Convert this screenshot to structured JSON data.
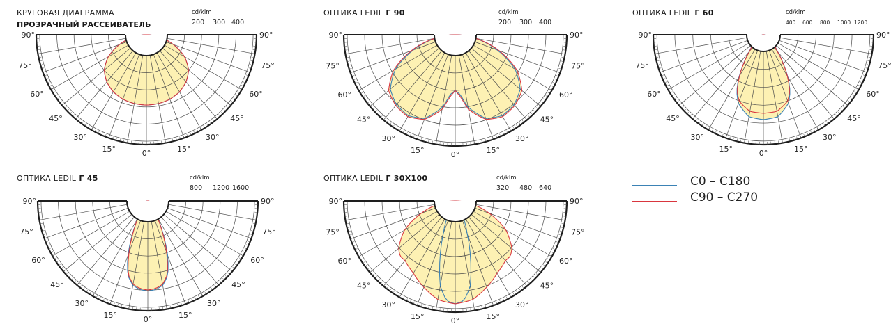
{
  "colors": {
    "fill": "#fdf1b3",
    "grid": "#4a4a4a",
    "frame": "#1e1e1e",
    "c0": "#3b82b5",
    "c90": "#d9363e"
  },
  "legend": [
    {
      "label": "C0 – C180",
      "color": "#3b82b5"
    },
    {
      "label": "C90 – C270",
      "color": "#d9363e"
    }
  ],
  "chart_data": [
    {
      "type": "polar",
      "title_line1": "КРУГОВАЯ ДИАГРАММА",
      "title_line2": "ПРОЗРАЧНЫЙ РАССЕИВАТЕЛЬ",
      "unit": "cd/klm",
      "ticks": [
        "200",
        "300",
        "400"
      ],
      "max_value": 500,
      "angle_labels": [
        "90°",
        "75°",
        "60°",
        "45°",
        "30°",
        "15°",
        "0°",
        "15°",
        "30°",
        "45°",
        "60°",
        "75°",
        "90°"
      ],
      "curves": {
        "c0_angles": [
          0,
          10,
          20,
          30,
          40,
          50,
          60,
          70,
          80,
          90
        ],
        "c0_values": [
          320,
          318,
          312,
          300,
          280,
          250,
          200,
          130,
          60,
          0
        ],
        "c90_angles": [
          0,
          10,
          20,
          30,
          40,
          50,
          60,
          70,
          80,
          90
        ],
        "c90_values": [
          320,
          318,
          312,
          300,
          280,
          250,
          200,
          130,
          60,
          0
        ]
      }
    },
    {
      "type": "polar",
      "title_line1": "ОПТИКА LEDIL",
      "title_bold": "Г 90",
      "unit": "cd/klm",
      "ticks": [
        "200",
        "300",
        "400"
      ],
      "max_value": 500,
      "angle_labels": [
        "90°",
        "75°",
        "60°",
        "45°",
        "30°",
        "15°",
        "0°",
        "15°",
        "30°",
        "45°",
        "60°",
        "75°",
        "90°"
      ],
      "curves": {
        "c0_angles": [
          0,
          5,
          10,
          20,
          30,
          40,
          50,
          60,
          70,
          80,
          90
        ],
        "c0_values": [
          250,
          270,
          330,
          400,
          420,
          410,
          380,
          310,
          200,
          90,
          0
        ],
        "c90_angles": [
          0,
          5,
          10,
          20,
          30,
          40,
          50,
          60,
          70,
          80,
          90
        ],
        "c90_values": [
          250,
          280,
          340,
          405,
          425,
          415,
          390,
          320,
          210,
          95,
          0
        ]
      }
    },
    {
      "type": "polar",
      "title_line1": "ОПТИКА LEDIL",
      "title_bold": "Г 60",
      "unit": "cd/klm",
      "ticks": [
        "400",
        "600",
        "800",
        "1000",
        "1200"
      ],
      "max_value": 1400,
      "angle_labels": [
        "90°",
        "75°",
        "60°",
        "45°",
        "30°",
        "15°",
        "0°",
        "15°",
        "30°",
        "45°",
        "60°",
        "75°",
        "90°"
      ],
      "curves": {
        "c0_angles": [
          0,
          10,
          20,
          25,
          30,
          35,
          40,
          50,
          60,
          90
        ],
        "c0_values": [
          1080,
          1060,
          930,
          800,
          620,
          430,
          280,
          130,
          50,
          0
        ],
        "c90_angles": [
          0,
          10,
          20,
          25,
          30,
          35,
          40,
          50,
          60,
          90
        ],
        "c90_values": [
          1000,
          990,
          900,
          790,
          610,
          420,
          270,
          120,
          45,
          0
        ]
      }
    },
    {
      "type": "polar",
      "title_line1": "ОПТИКА LEDIL",
      "title_bold": "Г 45",
      "unit": "cd/klm",
      "ticks": [
        "800",
        "1200",
        "1600"
      ],
      "max_value": 2000,
      "angle_labels": [
        "90°",
        "75°",
        "60°",
        "45°",
        "30°",
        "15°",
        "0°",
        "15°",
        "30°",
        "45°",
        "60°",
        "75°",
        "90°"
      ],
      "curves": {
        "c0_angles": [
          0,
          5,
          10,
          15,
          20,
          25,
          30,
          40,
          90
        ],
        "c0_values": [
          1640,
          1620,
          1560,
          1400,
          1050,
          650,
          350,
          120,
          0
        ],
        "c90_angles": [
          0,
          5,
          10,
          15,
          20,
          25,
          30,
          40,
          90
        ],
        "c90_values": [
          1620,
          1600,
          1540,
          1380,
          1000,
          620,
          340,
          110,
          0
        ]
      }
    },
    {
      "type": "polar",
      "title_line1": "ОПТИКА LEDIL",
      "title_bold": "Г 30X100",
      "unit": "cd/klm",
      "ticks": [
        "320",
        "480",
        "640"
      ],
      "max_value": 800,
      "angle_labels": [
        "90°",
        "75°",
        "60°",
        "45°",
        "30°",
        "15°",
        "0°",
        "15°",
        "30°",
        "45°",
        "60°",
        "75°",
        "90°"
      ],
      "curves": {
        "c0_angles": [
          0,
          5,
          10,
          15,
          20,
          25,
          30,
          40,
          90
        ],
        "c0_values": [
          740,
          720,
          620,
          420,
          250,
          150,
          90,
          40,
          0
        ],
        "c90_angles": [
          0,
          10,
          20,
          30,
          40,
          45,
          50,
          60,
          70,
          80,
          90
        ],
        "c90_values": [
          740,
          720,
          660,
          600,
          560,
          560,
          530,
          420,
          260,
          110,
          0
        ]
      }
    }
  ]
}
